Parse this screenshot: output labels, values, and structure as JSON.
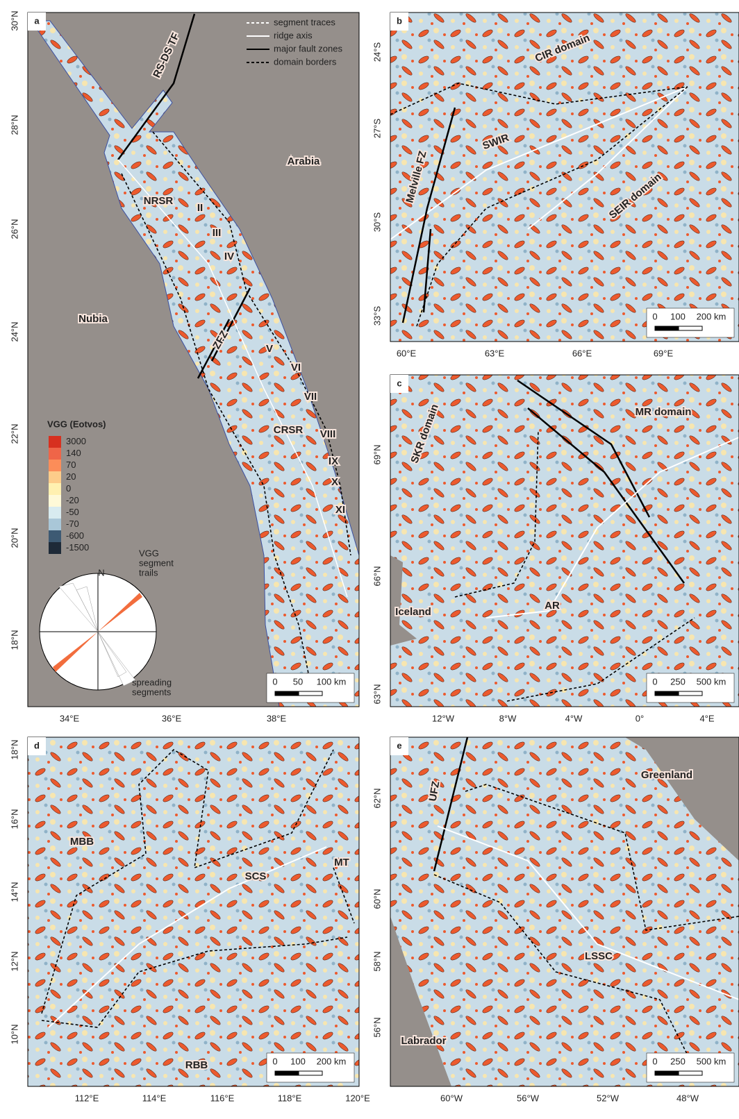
{
  "legend": {
    "items": [
      "segment traces",
      "ridge axis",
      "major fault zones",
      "domain borders"
    ]
  },
  "colorbar": {
    "title": "VGG (Eotvos)",
    "levels": [
      3000,
      140,
      70,
      20,
      0,
      -20,
      -50,
      -70,
      -600,
      -1500
    ],
    "colors": [
      "#d7301f",
      "#ef6548",
      "#fc8d59",
      "#fdcc8a",
      "#fff0b0",
      "#fef9d8",
      "#d8ebf0",
      "#a9c7d8",
      "#3d5a73",
      "#1e2a38"
    ]
  },
  "rose": {
    "north": "N",
    "trails": [
      "VGG",
      "segment",
      "trails"
    ],
    "spreading": [
      "spreading",
      "segments"
    ]
  },
  "panels": [
    {
      "label": "a",
      "lat_ticks": [
        "30°N",
        "28°N",
        "26°N",
        "24°N",
        "22°N",
        "20°N",
        "18°N"
      ],
      "lon_ticks": [
        "34°E",
        "36°E",
        "38°E"
      ],
      "places": [
        "RS-DS TF",
        "Arabia",
        "NRSR",
        "II",
        "III",
        "IV",
        "Nubia",
        "ZFZ",
        "V",
        "VI",
        "VII",
        "CRSR",
        "VIII",
        "IX",
        "X",
        "XI"
      ],
      "scale": [
        "0",
        "50",
        "100 km"
      ]
    },
    {
      "label": "b",
      "lat_ticks": [
        "24°S",
        "27°S",
        "30°S",
        "33°S"
      ],
      "lon_ticks": [
        "60°E",
        "63°E",
        "66°E",
        "69°E"
      ],
      "places": [
        "CIR domain",
        "SWIR",
        "Melville FZ",
        "SEIR domain"
      ],
      "scale": [
        "0",
        "100",
        "200 km"
      ]
    },
    {
      "label": "c",
      "lat_ticks": [
        "69°N",
        "66°N",
        "63°N"
      ],
      "lon_ticks": [
        "12°W",
        "8°W",
        "4°W",
        "0°",
        "4°E"
      ],
      "places": [
        "MR domain",
        "SKR domain",
        "Iceland",
        "AR"
      ],
      "scale": [
        "0",
        "250",
        "500 km"
      ]
    },
    {
      "label": "d",
      "lat_ticks": [
        "18°N",
        "16°N",
        "14°N",
        "12°N",
        "10°N"
      ],
      "lon_ticks": [
        "112°E",
        "114°E",
        "116°E",
        "118°E",
        "120°E"
      ],
      "places": [
        "MBB",
        "SCS",
        "MT",
        "RBB"
      ],
      "scale": [
        "0",
        "100",
        "200 km"
      ]
    },
    {
      "label": "e",
      "lat_ticks": [
        "62°N",
        "60°N",
        "58°N",
        "56°N"
      ],
      "lon_ticks": [
        "60°W",
        "56°W",
        "52°W",
        "48°W"
      ],
      "places": [
        "Greenland",
        "UFZ",
        "LSSC",
        "Labrador"
      ],
      "scale": [
        "0",
        "250",
        "500 km"
      ]
    }
  ]
}
